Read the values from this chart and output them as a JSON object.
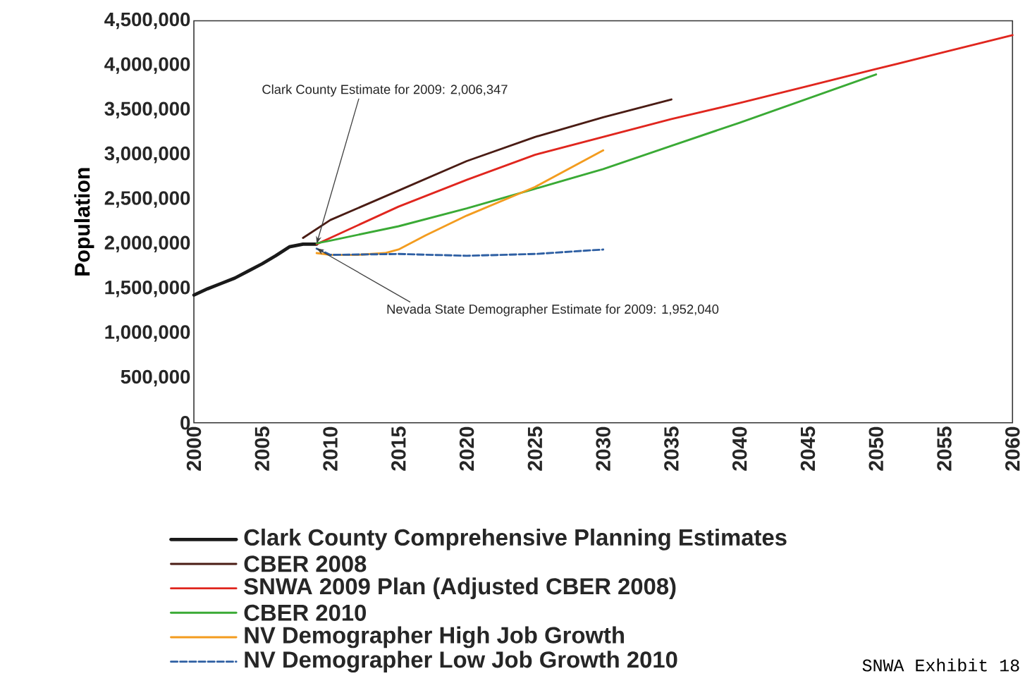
{
  "chart_data": {
    "type": "line",
    "ylabel": "Population",
    "x": [
      2000,
      2001,
      2002,
      2003,
      2004,
      2005,
      2006,
      2007,
      2008,
      2009
    ],
    "series": [
      {
        "name": "Clark County Comprehensive Planning Estimates",
        "color": "#1a1a1a",
        "values": [
          1430000,
          1500000,
          1560000,
          1620000,
          1700000,
          1780000,
          1870000,
          1970000,
          2000000,
          2000000
        ]
      },
      {
        "name": "CBER 2008",
        "color": "#4a1c14",
        "x": [
          2008,
          2010,
          2015,
          2020,
          2025,
          2030,
          2035
        ],
        "values": [
          2070000,
          2270000,
          2600000,
          2930000,
          3200000,
          3420000,
          3620000
        ]
      },
      {
        "name": "SNWA 2009 Plan (Adjusted CBER 2008)",
        "color": "#e0261e",
        "x": [
          2009,
          2010,
          2015,
          2020,
          2025,
          2030,
          2035,
          2040,
          2045,
          2050,
          2055,
          2060
        ],
        "values": [
          2000000,
          2070000,
          2420000,
          2720000,
          3000000,
          3200000,
          3400000,
          3580000,
          3770000,
          3960000,
          4150000,
          4340000
        ]
      },
      {
        "name": "CBER 2010",
        "color": "#3aaa35",
        "x": [
          2009,
          2010,
          2015,
          2020,
          2025,
          2030,
          2035,
          2040,
          2045,
          2050
        ],
        "values": [
          2010000,
          2040000,
          2200000,
          2400000,
          2620000,
          2840000,
          3100000,
          3360000,
          3630000,
          3900000
        ]
      },
      {
        "name": "NV Demographer High Job Growth",
        "color": "#f39c1f",
        "x": [
          2009,
          2010,
          2012,
          2014,
          2015,
          2017,
          2020,
          2025,
          2030
        ],
        "values": [
          1900000,
          1880000,
          1880000,
          1900000,
          1940000,
          2100000,
          2320000,
          2640000,
          3050000
        ]
      },
      {
        "name": "NV Demographer Low Job Growth 2010",
        "color": "#2e5fa3",
        "line_style": "dashed",
        "x": [
          2009,
          2010,
          2015,
          2020,
          2025,
          2030
        ],
        "values": [
          1950000,
          1880000,
          1890000,
          1870000,
          1890000,
          1940000
        ]
      }
    ],
    "xlim": [
      2000,
      2060
    ],
    "xticks": [
      2000,
      2005,
      2010,
      2015,
      2020,
      2025,
      2030,
      2035,
      2040,
      2045,
      2050,
      2055,
      2060
    ],
    "ylim": [
      0,
      4500000
    ],
    "yticks": [
      {
        "value": 0,
        "label": "0"
      },
      {
        "value": 500000,
        "label": "500,000"
      },
      {
        "value": 1000000,
        "label": "1,000,000"
      },
      {
        "value": 1500000,
        "label": "1,500,000"
      },
      {
        "value": 2000000,
        "label": "2,000,000"
      },
      {
        "value": 2500000,
        "label": "2,500,000"
      },
      {
        "value": 3000000,
        "label": "3,000,000"
      },
      {
        "value": 3500000,
        "label": "3,500,000"
      },
      {
        "value": 4000000,
        "label": "4,000,000"
      },
      {
        "value": 4500000,
        "label": "4,500,000"
      }
    ],
    "annotations": [
      {
        "text": "Clark County Estimate for 2009: 2,006,347",
        "x": 2009,
        "y": 2006347
      },
      {
        "text": "Nevada State Demographer Estimate for 2009: 1,952,040",
        "x": 2009,
        "y": 1952040
      },
      "SNWA Exhibit 18"
    ],
    "grid": false,
    "legend": "bottom"
  }
}
